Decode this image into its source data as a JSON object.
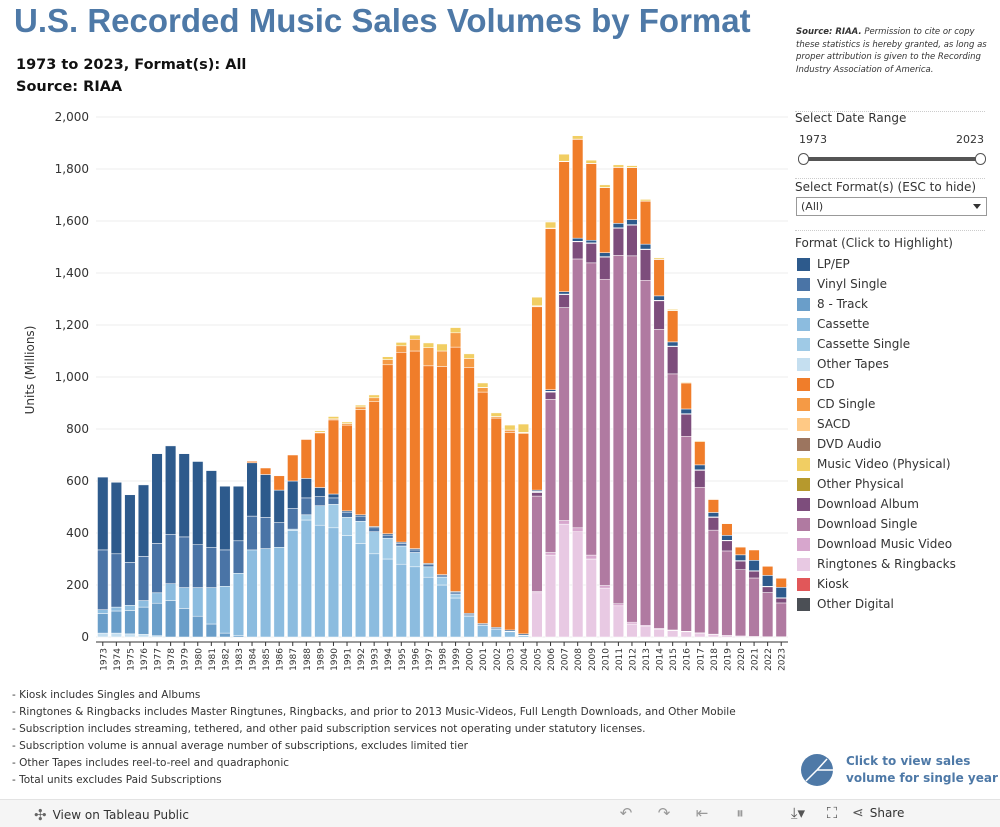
{
  "title": "U.S. Recorded Music Sales Volumes by Format",
  "subtitle1": "1973 to 2023, Format(s): All",
  "subtitle2": "Source: RIAA",
  "disclaimer_bold": "Source: RIAA.",
  "disclaimer_text": "Permission to cite or copy these statistics is hereby granted, as long as proper attribution is given to the Recording Industry Association of America.",
  "date_range": {
    "label": "Select Date Range",
    "start": "1973",
    "end": "2023"
  },
  "format_select": {
    "label": "Select Format(s) (ESC to hide)",
    "value": "(All)"
  },
  "legend_title": "Format (Click to Highlight)",
  "notes": [
    "- Kiosk includes Singles and Albums",
    "- Ringtones & Ringbacks includes Master Ringtunes, Ringbacks, and prior to 2013 Music-Videos, Full Length Downloads, and Other Mobile",
    "- Subscription includes streaming, tethered, and other paid subscription services not operating under statutory licenses.",
    "- Subscription volume is annual average number of subscriptions, excludes limited tier",
    "- Other Tapes includes reel-to-reel and quadraphonic",
    "- Total units excludes Paid Subscriptions"
  ],
  "single_year_line1": "Click to view sales",
  "single_year_line2": "volume for single year",
  "footer": {
    "view_label": "View on Tableau Public",
    "share_label": "Share"
  },
  "chart_data": {
    "type": "bar",
    "stacked": true,
    "ylabel": "Units (Millions)",
    "xlabel": "",
    "ylim": [
      0,
      2000
    ],
    "yticks": [
      0,
      200,
      400,
      600,
      800,
      1000,
      1200,
      1400,
      1600,
      1800,
      2000
    ],
    "categories": [
      "1973",
      "1974",
      "1975",
      "1976",
      "1977",
      "1978",
      "1979",
      "1980",
      "1981",
      "1982",
      "1983",
      "1984",
      "1985",
      "1986",
      "1987",
      "1988",
      "1989",
      "1990",
      "1991",
      "1992",
      "1993",
      "1994",
      "1995",
      "1996",
      "1997",
      "1998",
      "1999",
      "2000",
      "2001",
      "2002",
      "2003",
      "2004",
      "2005",
      "2006",
      "2007",
      "2008",
      "2009",
      "2010",
      "2011",
      "2012",
      "2013",
      "2014",
      "2015",
      "2016",
      "2017",
      "2018",
      "2019",
      "2020",
      "2021",
      "2022",
      "2023"
    ],
    "series": [
      {
        "name": "Ringtones & Ringbacks",
        "color": "#e8c9e3",
        "values": [
          0,
          0,
          0,
          0,
          0,
          0,
          0,
          0,
          0,
          0,
          0,
          0,
          0,
          0,
          0,
          0,
          0,
          0,
          0,
          0,
          0,
          0,
          0,
          0,
          0,
          0,
          0,
          0,
          0,
          0,
          0,
          0,
          170,
          315,
          434,
          405,
          300,
          188,
          120,
          50,
          40,
          30,
          25,
          20,
          15,
          10,
          6,
          4,
          2,
          1,
          1
        ]
      },
      {
        "name": "Download Music Video",
        "color": "#d7a6cd",
        "values": [
          0,
          0,
          0,
          0,
          0,
          0,
          0,
          0,
          0,
          0,
          0,
          0,
          0,
          0,
          0,
          0,
          0,
          0,
          0,
          0,
          0,
          0,
          0,
          0,
          0,
          0,
          0,
          0,
          0,
          0,
          0,
          0,
          5,
          10,
          14,
          15,
          15,
          10,
          8,
          7,
          5,
          3,
          2,
          2,
          1,
          1,
          0,
          0,
          0,
          0,
          0
        ]
      },
      {
        "name": "Download Single",
        "color": "#b07aa1",
        "values": [
          0,
          0,
          0,
          0,
          0,
          0,
          0,
          0,
          0,
          0,
          0,
          0,
          0,
          0,
          0,
          0,
          0,
          0,
          0,
          0,
          0,
          0,
          0,
          0,
          0,
          0,
          0,
          0,
          0,
          0,
          0,
          0,
          367,
          589,
          819,
          1034,
          1124,
          1178,
          1340,
          1409,
          1327,
          1150,
          985,
          750,
          560,
          400,
          325,
          255,
          225,
          170,
          130
        ]
      },
      {
        "name": "Download Album",
        "color": "#7d4d7c",
        "values": [
          0,
          0,
          0,
          0,
          0,
          0,
          0,
          0,
          0,
          0,
          0,
          0,
          0,
          0,
          0,
          0,
          0,
          0,
          0,
          0,
          0,
          0,
          0,
          0,
          0,
          0,
          0,
          0,
          0,
          0,
          0,
          0,
          14,
          28,
          50,
          66,
          75,
          85,
          104,
          118,
          118,
          110,
          105,
          85,
          65,
          49,
          39,
          33,
          26,
          22,
          18
        ]
      },
      {
        "name": "Kiosk",
        "color": "#e15759",
        "values": [
          0,
          0,
          0,
          0,
          0,
          0,
          0,
          0,
          0,
          0,
          0,
          0,
          0,
          0,
          0,
          0,
          0,
          0,
          0,
          0,
          0,
          0,
          0,
          0,
          0,
          0,
          0,
          0,
          0,
          0,
          0,
          0,
          0,
          0,
          0,
          0,
          0,
          0,
          0,
          0,
          0,
          0,
          0,
          0,
          0,
          0,
          0,
          0,
          0,
          0,
          0
        ]
      },
      {
        "name": "Other Digital",
        "color": "#4b4f55",
        "values": [
          0,
          0,
          0,
          0,
          0,
          0,
          0,
          0,
          0,
          0,
          0,
          0,
          0,
          0,
          0,
          0,
          0,
          0,
          0,
          0,
          0,
          0,
          0,
          0,
          0,
          0,
          0,
          0,
          0,
          0,
          0,
          0,
          0,
          0,
          0,
          0,
          0,
          0,
          0,
          0,
          0,
          0,
          0,
          0,
          0,
          0,
          0,
          0,
          0,
          0,
          0
        ]
      },
      {
        "name": "Other Tapes",
        "color": "#c5dff0",
        "values": [
          15,
          15,
          12,
          10,
          5,
          0,
          0,
          0,
          0,
          0,
          0,
          0,
          0,
          0,
          0,
          0,
          0,
          0,
          0,
          0,
          0,
          0,
          0,
          0,
          0,
          0,
          0,
          0,
          0,
          0,
          0,
          0,
          0,
          0,
          0,
          0,
          0,
          0,
          0,
          0,
          0,
          0,
          0,
          0,
          0,
          0,
          0,
          0,
          0,
          0,
          0
        ]
      },
      {
        "name": "8 - Track",
        "color": "#6a9ec9",
        "values": [
          75,
          85,
          90,
          105,
          125,
          140,
          110,
          80,
          50,
          15,
          5,
          0,
          0,
          0,
          0,
          0,
          0,
          0,
          0,
          0,
          0,
          0,
          0,
          0,
          0,
          0,
          0,
          0,
          0,
          0,
          0,
          0,
          0,
          0,
          0,
          0,
          0,
          0,
          0,
          0,
          0,
          0,
          0,
          0,
          0,
          0,
          0,
          0,
          0,
          0,
          0
        ]
      },
      {
        "name": "Cassette",
        "color": "#8cbcdf",
        "values": [
          15,
          15,
          20,
          25,
          40,
          65,
          80,
          110,
          140,
          180,
          240,
          335,
          340,
          345,
          410,
          450,
          430,
          420,
          390,
          360,
          320,
          300,
          280,
          270,
          230,
          200,
          150,
          80,
          45,
          30,
          20,
          5,
          2,
          1,
          0,
          0,
          0,
          0,
          0,
          0,
          0,
          0,
          0,
          0,
          0,
          0,
          0,
          0,
          0,
          0,
          0
        ]
      },
      {
        "name": "Cassette Single",
        "color": "#9fcae6",
        "values": [
          0,
          0,
          0,
          0,
          0,
          0,
          0,
          0,
          0,
          0,
          0,
          0,
          0,
          0,
          5,
          20,
          75,
          90,
          70,
          85,
          85,
          80,
          70,
          55,
          40,
          30,
          15,
          2,
          0,
          0,
          0,
          0,
          0,
          0,
          0,
          0,
          0,
          0,
          0,
          0,
          0,
          0,
          0,
          0,
          0,
          0,
          0,
          0,
          0,
          0,
          0
        ]
      },
      {
        "name": "Vinyl Single",
        "color": "#4a74a6",
        "values": [
          230,
          205,
          165,
          170,
          190,
          190,
          195,
          165,
          155,
          140,
          125,
          130,
          120,
          95,
          80,
          65,
          35,
          25,
          20,
          20,
          15,
          12,
          10,
          10,
          8,
          5,
          5,
          4,
          2,
          2,
          2,
          2,
          2,
          2,
          2,
          2,
          2,
          2,
          2,
          2,
          2,
          2,
          2,
          2,
          2,
          2,
          2,
          2,
          2,
          2,
          2
        ]
      },
      {
        "name": "LP/EP",
        "color": "#2d5a8c",
        "values": [
          280,
          275,
          260,
          275,
          345,
          340,
          320,
          320,
          295,
          245,
          210,
          205,
          165,
          125,
          105,
          75,
          35,
          15,
          5,
          5,
          5,
          5,
          5,
          5,
          5,
          5,
          5,
          5,
          5,
          5,
          5,
          5,
          5,
          6,
          9,
          12,
          10,
          15,
          17,
          19,
          19,
          17,
          16,
          18,
          19,
          17,
          19,
          22,
          40,
          42,
          40
        ]
      },
      {
        "name": "CD",
        "color": "#f07d2a",
        "values": [
          0,
          0,
          0,
          0,
          0,
          0,
          0,
          0,
          0,
          0,
          0,
          6,
          25,
          55,
          100,
          150,
          210,
          285,
          330,
          405,
          480,
          650,
          730,
          760,
          760,
          800,
          940,
          945,
          890,
          805,
          760,
          770,
          705,
          620,
          500,
          380,
          295,
          250,
          215,
          200,
          165,
          140,
          120,
          100,
          90,
          50,
          45,
          30,
          40,
          35,
          35
        ]
      },
      {
        "name": "CD Single",
        "color": "#f59a45",
        "values": [
          0,
          0,
          0,
          0,
          0,
          0,
          0,
          0,
          0,
          0,
          0,
          0,
          0,
          0,
          0,
          1,
          2,
          4,
          6,
          10,
          15,
          20,
          25,
          45,
          70,
          60,
          55,
          35,
          17,
          5,
          8,
          4,
          3,
          2,
          2,
          1,
          1,
          1,
          1,
          1,
          1,
          1,
          1,
          0,
          0,
          0,
          0,
          0,
          0,
          0,
          0
        ]
      },
      {
        "name": "SACD",
        "color": "#ffc985",
        "values": [
          0,
          0,
          0,
          0,
          0,
          0,
          0,
          0,
          0,
          0,
          0,
          0,
          0,
          0,
          0,
          0,
          0,
          0,
          0,
          0,
          0,
          0,
          0,
          0,
          0,
          0,
          0,
          0,
          1,
          1,
          1,
          1,
          1,
          0,
          0,
          0,
          0,
          0,
          0,
          0,
          0,
          0,
          0,
          0,
          0,
          0,
          0,
          0,
          0,
          0,
          0
        ]
      },
      {
        "name": "DVD Audio",
        "color": "#9c755f",
        "values": [
          0,
          0,
          0,
          0,
          0,
          0,
          0,
          0,
          0,
          0,
          0,
          0,
          0,
          0,
          0,
          0,
          0,
          0,
          0,
          0,
          0,
          0,
          0,
          0,
          0,
          0,
          0,
          0,
          0,
          0,
          0,
          0,
          0,
          0,
          0,
          0,
          0,
          0,
          0,
          0,
          0,
          0,
          0,
          0,
          0,
          0,
          0,
          0,
          0,
          0,
          0
        ]
      },
      {
        "name": "Music Video (Physical)",
        "color": "#f1ce63",
        "values": [
          0,
          0,
          0,
          0,
          0,
          0,
          0,
          0,
          0,
          0,
          0,
          0,
          0,
          0,
          0,
          0,
          6,
          9,
          6,
          7,
          11,
          11,
          13,
          16,
          18,
          27,
          20,
          18,
          17,
          14,
          19,
          32,
          33,
          23,
          27,
          13,
          12,
          10,
          9,
          7,
          6,
          5,
          4,
          3,
          3,
          2,
          2,
          1,
          1,
          1,
          1
        ]
      },
      {
        "name": "Other Physical",
        "color": "#b6992d",
        "values": [
          0,
          0,
          0,
          0,
          0,
          0,
          0,
          0,
          0,
          0,
          0,
          0,
          0,
          0,
          0,
          0,
          0,
          0,
          0,
          0,
          0,
          0,
          0,
          0,
          0,
          0,
          0,
          0,
          0,
          0,
          0,
          0,
          0,
          0,
          0,
          0,
          0,
          0,
          0,
          0,
          0,
          0,
          0,
          0,
          0,
          0,
          0,
          0,
          0,
          0,
          0
        ]
      }
    ],
    "totals": [
      615,
      595,
      547,
      585,
      705,
      735,
      705,
      675,
      640,
      580,
      580,
      676,
      650,
      620,
      700,
      761,
      793,
      848,
      827,
      892,
      931,
      1078,
      1113,
      1156,
      1131,
      1127,
      1190,
      1089,
      976,
      861,
      814,
      819,
      1307,
      1596,
      1857,
      1928,
      1834,
      1739,
      1816,
      1813,
      1683,
      1458,
      1260,
      980,
      755,
      531,
      438,
      347,
      336,
      271,
      227
    ]
  },
  "legend": [
    {
      "label": "LP/EP",
      "color": "#2d5a8c"
    },
    {
      "label": "Vinyl Single",
      "color": "#4a74a6"
    },
    {
      "label": "8 - Track",
      "color": "#6a9ec9"
    },
    {
      "label": "Cassette",
      "color": "#8cbcdf"
    },
    {
      "label": "Cassette Single",
      "color": "#9fcae6"
    },
    {
      "label": "Other Tapes",
      "color": "#c5dff0"
    },
    {
      "label": "CD",
      "color": "#f07d2a"
    },
    {
      "label": "CD Single",
      "color": "#f59a45"
    },
    {
      "label": "SACD",
      "color": "#ffc985"
    },
    {
      "label": "DVD Audio",
      "color": "#9c755f"
    },
    {
      "label": "Music Video (Physical)",
      "color": "#f1ce63"
    },
    {
      "label": "Other Physical",
      "color": "#b6992d"
    },
    {
      "label": "Download Album",
      "color": "#7d4d7c"
    },
    {
      "label": "Download Single",
      "color": "#b07aa1"
    },
    {
      "label": "Download Music Video",
      "color": "#d7a6cd"
    },
    {
      "label": "Ringtones & Ringbacks",
      "color": "#e8c9e3"
    },
    {
      "label": "Kiosk",
      "color": "#e15759"
    },
    {
      "label": "Other Digital",
      "color": "#4b4f55"
    }
  ]
}
